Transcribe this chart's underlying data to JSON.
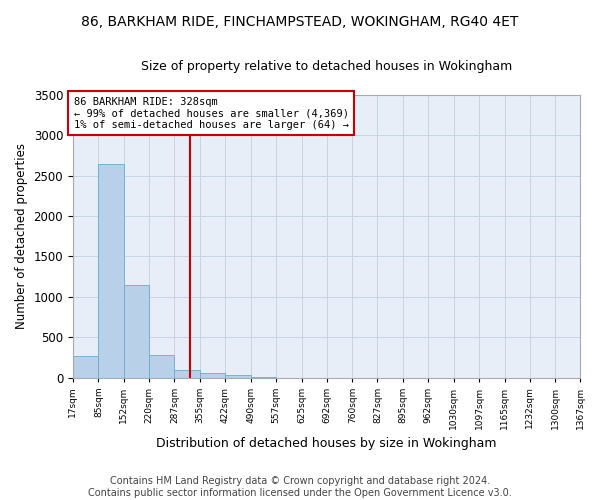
{
  "title_line1": "86, BARKHAM RIDE, FINCHAMPSTEAD, WOKINGHAM, RG40 4ET",
  "title_line2": "Size of property relative to detached houses in Wokingham",
  "xlabel": "Distribution of detached houses by size in Wokingham",
  "ylabel": "Number of detached properties",
  "bar_color": "#b8d0e8",
  "bar_edge_color": "#6aaad4",
  "grid_color": "#c8d4e4",
  "background_color": "#e8eef8",
  "annotation_text": "86 BARKHAM RIDE: 328sqm\n← 99% of detached houses are smaller (4,369)\n1% of semi-detached houses are larger (64) →",
  "annotation_box_color": "#ffffff",
  "annotation_box_edge": "#cc0000",
  "vline_x": 328,
  "vline_color": "#cc0000",
  "bin_edges": [
    17,
    85,
    152,
    220,
    287,
    355,
    422,
    490,
    557,
    625,
    692,
    760,
    827,
    895,
    962,
    1030,
    1097,
    1165,
    1232,
    1300,
    1367
  ],
  "bar_heights": [
    270,
    2650,
    1140,
    285,
    90,
    60,
    35,
    5,
    0,
    0,
    0,
    0,
    0,
    0,
    0,
    0,
    0,
    0,
    0,
    0
  ],
  "tick_labels": [
    "17sqm",
    "85sqm",
    "152sqm",
    "220sqm",
    "287sqm",
    "355sqm",
    "422sqm",
    "490sqm",
    "557sqm",
    "625sqm",
    "692sqm",
    "760sqm",
    "827sqm",
    "895sqm",
    "962sqm",
    "1030sqm",
    "1097sqm",
    "1165sqm",
    "1232sqm",
    "1300sqm",
    "1367sqm"
  ],
  "ylim": [
    0,
    3500
  ],
  "yticks": [
    0,
    500,
    1000,
    1500,
    2000,
    2500,
    3000,
    3500
  ],
  "footer_text": "Contains HM Land Registry data © Crown copyright and database right 2024.\nContains public sector information licensed under the Open Government Licence v3.0.",
  "footer_fontsize": 7.0,
  "title1_fontsize": 10,
  "title2_fontsize": 9,
  "xlabel_fontsize": 9,
  "ylabel_fontsize": 8.5,
  "tick_fontsize": 6.5,
  "annot_fontsize": 7.5
}
